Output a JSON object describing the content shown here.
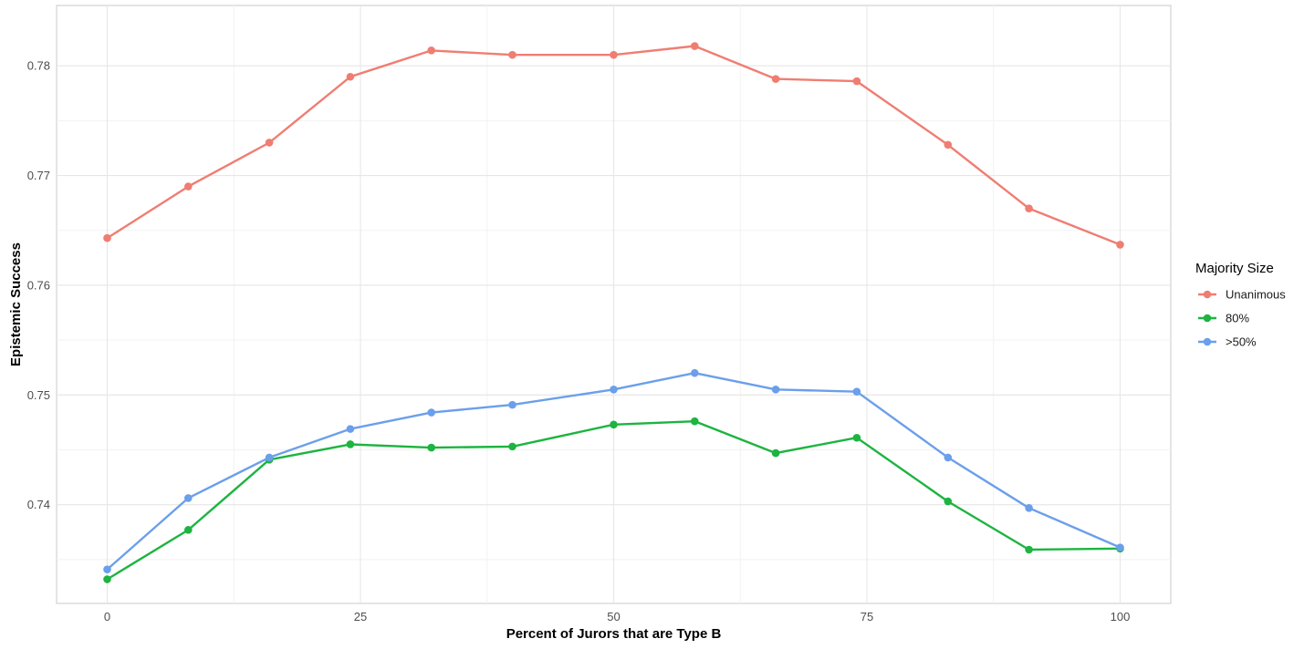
{
  "chart_data": {
    "type": "line",
    "title": "",
    "xlabel": "Percent of Jurors that are Type B",
    "ylabel": "Epistemic Success",
    "xlim": [
      -5,
      105
    ],
    "ylim": [
      0.731,
      0.7855
    ],
    "x_ticks": [
      0,
      25,
      50,
      75,
      100
    ],
    "y_ticks": [
      0.74,
      0.75,
      0.76,
      0.77,
      0.78
    ],
    "x_tick_labels": [
      "0",
      "25",
      "50",
      "75",
      "100"
    ],
    "y_tick_labels": [
      "0.74",
      "0.75",
      "0.76",
      "0.77",
      "0.78"
    ],
    "grid": true,
    "legend": {
      "title": "Majority Size",
      "position": "right"
    },
    "x": [
      0,
      8,
      16,
      24,
      32,
      40,
      50,
      58,
      66,
      74,
      83,
      91,
      100
    ],
    "series": [
      {
        "name": "Unanimous",
        "color": "#F07D72",
        "values": [
          0.7643,
          0.769,
          0.773,
          0.779,
          0.7814,
          0.781,
          0.781,
          0.7818,
          0.7788,
          0.7786,
          0.7728,
          0.767,
          0.7637
        ]
      },
      {
        "name": "80%",
        "color": "#1DB440",
        "values": [
          0.7332,
          0.7377,
          0.7441,
          0.7455,
          0.7452,
          0.7453,
          0.7473,
          0.7476,
          0.7447,
          0.7461,
          0.7403,
          0.7359,
          0.736
        ]
      },
      {
        "name": ">50%",
        "color": "#6B9FEB",
        "values": [
          0.7341,
          0.7406,
          0.7443,
          0.7469,
          0.7484,
          0.7491,
          0.7505,
          0.752,
          0.7505,
          0.7503,
          0.7443,
          0.7397,
          0.7361
        ]
      }
    ]
  }
}
